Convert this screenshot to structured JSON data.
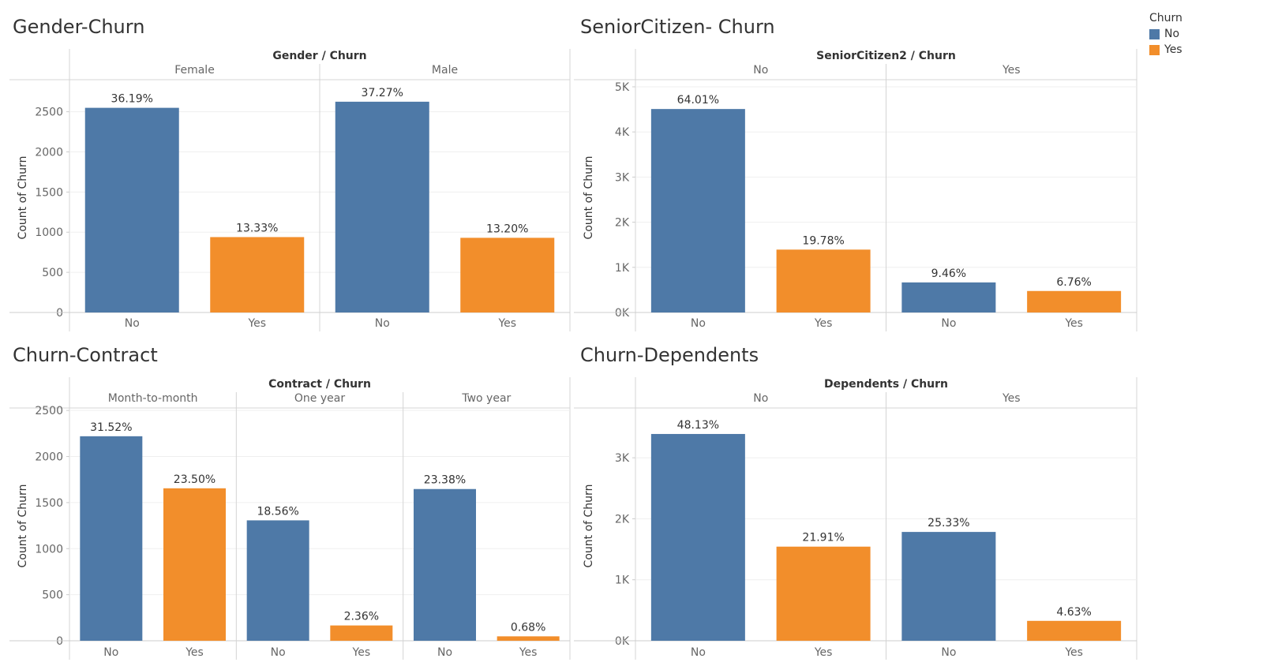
{
  "legend": {
    "title": "Churn",
    "items": [
      {
        "label": "No",
        "color": "#4E79A7"
      },
      {
        "label": "Yes",
        "color": "#F28E2B"
      }
    ]
  },
  "chart_data": [
    {
      "type": "bar",
      "title": "Gender-Churn",
      "header": "Gender / Churn",
      "ylabel": "Count of Churn",
      "ylim": [
        0,
        2850
      ],
      "yticks": [
        {
          "v": 0,
          "label": "0"
        },
        {
          "v": 500,
          "label": "500"
        },
        {
          "v": 1000,
          "label": "1000"
        },
        {
          "v": 1500,
          "label": "1500"
        },
        {
          "v": 2000,
          "label": "2000"
        },
        {
          "v": 2500,
          "label": "2500"
        }
      ],
      "groups": [
        {
          "name": "Female",
          "bars": [
            {
              "category": "No",
              "value": 2549,
              "label": "36.19%"
            },
            {
              "category": "Yes",
              "value": 939,
              "label": "13.33%"
            }
          ]
        },
        {
          "name": "Male",
          "bars": [
            {
              "category": "No",
              "value": 2625,
              "label": "37.27%"
            },
            {
              "category": "Yes",
              "value": 930,
              "label": "13.20%"
            }
          ]
        }
      ]
    },
    {
      "type": "bar",
      "title": "SeniorCitizen- Churn",
      "header": "SeniorCitizen2 / Churn",
      "ylabel": "Count of Churn",
      "ylim": [
        0,
        5000
      ],
      "yticks": [
        {
          "v": 0,
          "label": "0K"
        },
        {
          "v": 1000,
          "label": "1K"
        },
        {
          "v": 2000,
          "label": "2K"
        },
        {
          "v": 3000,
          "label": "3K"
        },
        {
          "v": 4000,
          "label": "4K"
        },
        {
          "v": 5000,
          "label": "5K"
        }
      ],
      "groups": [
        {
          "name": "No",
          "bars": [
            {
              "category": "No",
              "value": 4508,
              "label": "64.01%"
            },
            {
              "category": "Yes",
              "value": 1393,
              "label": "19.78%"
            }
          ]
        },
        {
          "name": "Yes",
          "bars": [
            {
              "category": "No",
              "value": 666,
              "label": "9.46%"
            },
            {
              "category": "Yes",
              "value": 476,
              "label": "6.76%"
            }
          ]
        }
      ]
    },
    {
      "type": "bar",
      "title": "Churn-Contract",
      "header": "Contract / Churn",
      "ylabel": "Count of Churn",
      "ylim": [
        0,
        2450
      ],
      "yticks": [
        {
          "v": 0,
          "label": "0"
        },
        {
          "v": 500,
          "label": "500"
        },
        {
          "v": 1000,
          "label": "1000"
        },
        {
          "v": 1500,
          "label": "1500"
        },
        {
          "v": 2000,
          "label": "2000"
        },
        {
          "v": 2500,
          "label": "2500"
        }
      ],
      "groups": [
        {
          "name": "Month-to-month",
          "bars": [
            {
              "category": "No",
              "value": 2220,
              "label": "31.52%"
            },
            {
              "category": "Yes",
              "value": 1655,
              "label": "23.50%"
            }
          ]
        },
        {
          "name": "One year",
          "bars": [
            {
              "category": "No",
              "value": 1307,
              "label": "18.56%"
            },
            {
              "category": "Yes",
              "value": 166,
              "label": "2.36%"
            }
          ]
        },
        {
          "name": "Two year",
          "bars": [
            {
              "category": "No",
              "value": 1647,
              "label": "23.38%"
            },
            {
              "category": "Yes",
              "value": 48,
              "label": "0.68%"
            }
          ]
        }
      ]
    },
    {
      "type": "bar",
      "title": "Churn-Dependents",
      "header": "Dependents / Churn",
      "ylabel": "Count of Churn",
      "ylim": [
        0,
        3700
      ],
      "yticks": [
        {
          "v": 0,
          "label": "0K"
        },
        {
          "v": 1000,
          "label": "1K"
        },
        {
          "v": 2000,
          "label": "2K"
        },
        {
          "v": 3000,
          "label": "3K"
        }
      ],
      "groups": [
        {
          "name": "No",
          "bars": [
            {
              "category": "No",
              "value": 3390,
              "label": "48.13%"
            },
            {
              "category": "Yes",
              "value": 1543,
              "label": "21.91%"
            }
          ]
        },
        {
          "name": "Yes",
          "bars": [
            {
              "category": "No",
              "value": 1784,
              "label": "25.33%"
            },
            {
              "category": "Yes",
              "value": 326,
              "label": "4.63%"
            }
          ]
        }
      ]
    }
  ]
}
